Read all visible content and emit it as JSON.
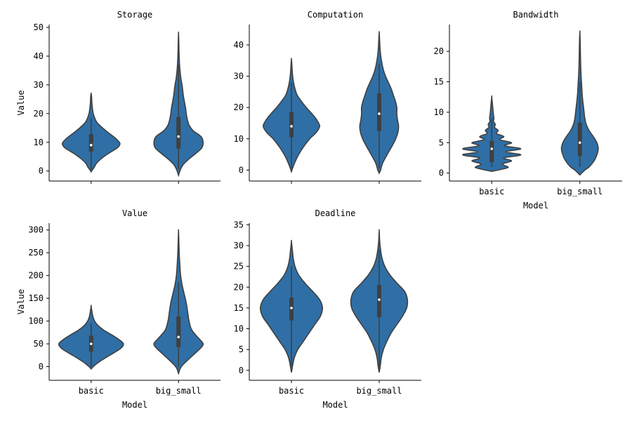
{
  "chart_data": [
    {
      "type": "violin",
      "title": "Storage",
      "xlabel": "",
      "ylabel": "Value",
      "categories": [
        "basic",
        "big_small"
      ],
      "ylim": [
        -3.5,
        51
      ],
      "yticks": [
        0,
        10,
        20,
        30,
        40,
        50
      ],
      "show_xtick_labels": false,
      "color": "#2f6fa6",
      "violins": [
        {
          "category": "basic",
          "whisker": [
            0.5,
            18.5
          ],
          "q1": 6.8,
          "median": 9.0,
          "q3": 12.8,
          "density": [
            [
              -0.3,
              0
            ],
            [
              0.5,
              0.04
            ],
            [
              1.5,
              0.1
            ],
            [
              2.5,
              0.14
            ],
            [
              4,
              0.26
            ],
            [
              6,
              0.48
            ],
            [
              8,
              0.74
            ],
            [
              9.5,
              0.82
            ],
            [
              11,
              0.73
            ],
            [
              12.5,
              0.58
            ],
            [
              14,
              0.42
            ],
            [
              15.5,
              0.28
            ],
            [
              17,
              0.16
            ],
            [
              18.5,
              0.1
            ],
            [
              20,
              0.06
            ],
            [
              22,
              0.035
            ],
            [
              24,
              0.02
            ],
            [
              26,
              0.012
            ],
            [
              27,
              0
            ]
          ]
        },
        {
          "category": "big_small",
          "whisker": [
            0.5,
            37
          ],
          "q1": 7.8,
          "median": 12.0,
          "q3": 18.8,
          "density": [
            [
              -1.5,
              0
            ],
            [
              0,
              0.04
            ],
            [
              2,
              0.12
            ],
            [
              4,
              0.28
            ],
            [
              6,
              0.48
            ],
            [
              8,
              0.66
            ],
            [
              10,
              0.7
            ],
            [
              12,
              0.64
            ],
            [
              14,
              0.42
            ],
            [
              16,
              0.3
            ],
            [
              18,
              0.25
            ],
            [
              20,
              0.22
            ],
            [
              22,
              0.2
            ],
            [
              24,
              0.17
            ],
            [
              26,
              0.14
            ],
            [
              28,
              0.12
            ],
            [
              30,
              0.1
            ],
            [
              32,
              0.07
            ],
            [
              34,
              0.05
            ],
            [
              36,
              0.035
            ],
            [
              38,
              0.025
            ],
            [
              41,
              0.015
            ],
            [
              45,
              0.008
            ],
            [
              48,
              0
            ]
          ]
        }
      ]
    },
    {
      "type": "violin",
      "title": "Computation",
      "xlabel": "",
      "ylabel": "",
      "categories": [
        "basic",
        "big_small"
      ],
      "ylim": [
        -3.5,
        46.5
      ],
      "yticks": [
        0,
        10,
        20,
        30,
        40
      ],
      "show_xtick_labels": false,
      "color": "#2f6fa6",
      "violins": [
        {
          "category": "basic",
          "whisker": [
            0.5,
            28
          ],
          "q1": 10.5,
          "median": 14.0,
          "q3": 18.5,
          "density": [
            [
              -0.5,
              0
            ],
            [
              0.5,
              0.03
            ],
            [
              2,
              0.08
            ],
            [
              4,
              0.16
            ],
            [
              6,
              0.26
            ],
            [
              8,
              0.38
            ],
            [
              10,
              0.52
            ],
            [
              12,
              0.7
            ],
            [
              14,
              0.8
            ],
            [
              16,
              0.72
            ],
            [
              18,
              0.58
            ],
            [
              20,
              0.42
            ],
            [
              22,
              0.28
            ],
            [
              24,
              0.16
            ],
            [
              26,
              0.1
            ],
            [
              28,
              0.06
            ],
            [
              30,
              0.035
            ],
            [
              32,
              0.02
            ],
            [
              34,
              0.01
            ],
            [
              35.5,
              0
            ]
          ]
        },
        {
          "category": "big_small",
          "whisker": [
            0.5,
            34
          ],
          "q1": 12.5,
          "median": 18.0,
          "q3": 24.5,
          "density": [
            [
              -1,
              0
            ],
            [
              0,
              0.04
            ],
            [
              2,
              0.09
            ],
            [
              4,
              0.18
            ],
            [
              6,
              0.28
            ],
            [
              8,
              0.38
            ],
            [
              10,
              0.47
            ],
            [
              12,
              0.53
            ],
            [
              14,
              0.55
            ],
            [
              16,
              0.52
            ],
            [
              18,
              0.5
            ],
            [
              20,
              0.5
            ],
            [
              22,
              0.46
            ],
            [
              24,
              0.4
            ],
            [
              26,
              0.34
            ],
            [
              28,
              0.26
            ],
            [
              30,
              0.18
            ],
            [
              32,
              0.12
            ],
            [
              34,
              0.08
            ],
            [
              36,
              0.05
            ],
            [
              38,
              0.03
            ],
            [
              40,
              0.018
            ],
            [
              42,
              0.01
            ],
            [
              44,
              0
            ]
          ]
        }
      ]
    },
    {
      "type": "violin",
      "title": "Bandwidth",
      "xlabel": "Model",
      "ylabel": "",
      "categories": [
        "basic",
        "big_small"
      ],
      "ylim": [
        -1.3,
        24.4
      ],
      "yticks": [
        0,
        5,
        10,
        15,
        20
      ],
      "show_xtick_labels": true,
      "color": "#2f6fa6",
      "violins": [
        {
          "category": "basic",
          "whisker": [
            1,
            9
          ],
          "q1": 1.8,
          "median": 4.0,
          "q3": 5.3,
          "density": [
            [
              0.3,
              0
            ],
            [
              0.5,
              0.18
            ],
            [
              0.8,
              0.4
            ],
            [
              1,
              0.46
            ],
            [
              1.5,
              0.3
            ],
            [
              2,
              0.56
            ],
            [
              2.5,
              0.34
            ],
            [
              3,
              0.82
            ],
            [
              3.5,
              0.4
            ],
            [
              4,
              0.82
            ],
            [
              4.5,
              0.36
            ],
            [
              5,
              0.56
            ],
            [
              5.5,
              0.22
            ],
            [
              6,
              0.34
            ],
            [
              6.5,
              0.13
            ],
            [
              7,
              0.18
            ],
            [
              7.5,
              0.08
            ],
            [
              8,
              0.1
            ],
            [
              8.5,
              0.05
            ],
            [
              9,
              0.06
            ],
            [
              10,
              0.04
            ],
            [
              11,
              0.025
            ],
            [
              12.5,
              0
            ]
          ]
        },
        {
          "category": "big_small",
          "whisker": [
            1,
            15
          ],
          "q1": 2.8,
          "median": 5.0,
          "q3": 8.3,
          "density": [
            [
              -0.3,
              0
            ],
            [
              0.5,
              0.14
            ],
            [
              1,
              0.26
            ],
            [
              2,
              0.4
            ],
            [
              3,
              0.48
            ],
            [
              4,
              0.52
            ],
            [
              5,
              0.48
            ],
            [
              6,
              0.38
            ],
            [
              7,
              0.26
            ],
            [
              8,
              0.18
            ],
            [
              9,
              0.14
            ],
            [
              10,
              0.12
            ],
            [
              11,
              0.1
            ],
            [
              12,
              0.08
            ],
            [
              13,
              0.065
            ],
            [
              14,
              0.055
            ],
            [
              15,
              0.045
            ],
            [
              16,
              0.035
            ],
            [
              17,
              0.028
            ],
            [
              18,
              0.022
            ],
            [
              20,
              0.015
            ],
            [
              22,
              0.008
            ],
            [
              23.2,
              0
            ]
          ]
        }
      ]
    },
    {
      "type": "violin",
      "title": "Value",
      "xlabel": "Model",
      "ylabel": "Value",
      "categories": [
        "basic",
        "big_small"
      ],
      "ylim": [
        -30,
        315
      ],
      "yticks": [
        0,
        50,
        100,
        150,
        200,
        250,
        300
      ],
      "show_xtick_labels": true,
      "color": "#2f6fa6",
      "violins": [
        {
          "category": "basic",
          "whisker": [
            0,
            95
          ],
          "q1": 33,
          "median": 50,
          "q3": 68,
          "density": [
            [
              -5,
              0
            ],
            [
              0,
              0.06
            ],
            [
              10,
              0.22
            ],
            [
              20,
              0.42
            ],
            [
              30,
              0.64
            ],
            [
              40,
              0.84
            ],
            [
              50,
              0.92
            ],
            [
              60,
              0.78
            ],
            [
              70,
              0.58
            ],
            [
              80,
              0.36
            ],
            [
              90,
              0.2
            ],
            [
              100,
              0.1
            ],
            [
              110,
              0.05
            ],
            [
              120,
              0.025
            ],
            [
              133,
              0
            ]
          ]
        },
        {
          "category": "big_small",
          "whisker": [
            0,
            185
          ],
          "q1": 43,
          "median": 65,
          "q3": 110,
          "density": [
            [
              -15,
              0
            ],
            [
              0,
              0.08
            ],
            [
              20,
              0.34
            ],
            [
              40,
              0.62
            ],
            [
              50,
              0.7
            ],
            [
              60,
              0.6
            ],
            [
              80,
              0.38
            ],
            [
              100,
              0.3
            ],
            [
              120,
              0.26
            ],
            [
              140,
              0.22
            ],
            [
              160,
              0.16
            ],
            [
              180,
              0.1
            ],
            [
              200,
              0.06
            ],
            [
              220,
              0.04
            ],
            [
              240,
              0.025
            ],
            [
              260,
              0.015
            ],
            [
              280,
              0.008
            ],
            [
              298,
              0
            ]
          ]
        }
      ]
    },
    {
      "type": "violin",
      "title": "Deadline",
      "xlabel": "Model",
      "ylabel": "",
      "categories": [
        "basic",
        "big_small"
      ],
      "ylim": [
        -2.4,
        35.4
      ],
      "yticks": [
        0,
        5,
        10,
        15,
        20,
        25,
        30,
        35
      ],
      "show_xtick_labels": true,
      "color": "#2f6fa6",
      "violins": [
        {
          "category": "basic",
          "whisker": [
            1,
            25
          ],
          "q1": 12.0,
          "median": 15.0,
          "q3": 17.5,
          "density": [
            [
              -0.5,
              0
            ],
            [
              1,
              0.03
            ],
            [
              3,
              0.08
            ],
            [
              5,
              0.18
            ],
            [
              7,
              0.34
            ],
            [
              9,
              0.5
            ],
            [
              11,
              0.66
            ],
            [
              13,
              0.82
            ],
            [
              15,
              0.88
            ],
            [
              17,
              0.8
            ],
            [
              19,
              0.6
            ],
            [
              21,
              0.38
            ],
            [
              23,
              0.2
            ],
            [
              25,
              0.1
            ],
            [
              27,
              0.05
            ],
            [
              29,
              0.025
            ],
            [
              31,
              0
            ]
          ]
        },
        {
          "category": "big_small",
          "whisker": [
            1,
            29
          ],
          "q1": 12.8,
          "median": 17.0,
          "q3": 20.5,
          "density": [
            [
              -0.5,
              0
            ],
            [
              1,
              0.03
            ],
            [
              3,
              0.06
            ],
            [
              5,
              0.12
            ],
            [
              7,
              0.22
            ],
            [
              9,
              0.34
            ],
            [
              11,
              0.5
            ],
            [
              13,
              0.66
            ],
            [
              15,
              0.78
            ],
            [
              17,
              0.8
            ],
            [
              19,
              0.72
            ],
            [
              21,
              0.5
            ],
            [
              23,
              0.3
            ],
            [
              25,
              0.16
            ],
            [
              27,
              0.08
            ],
            [
              29,
              0.04
            ],
            [
              31,
              0.015
            ],
            [
              33.5,
              0
            ]
          ]
        }
      ]
    }
  ]
}
